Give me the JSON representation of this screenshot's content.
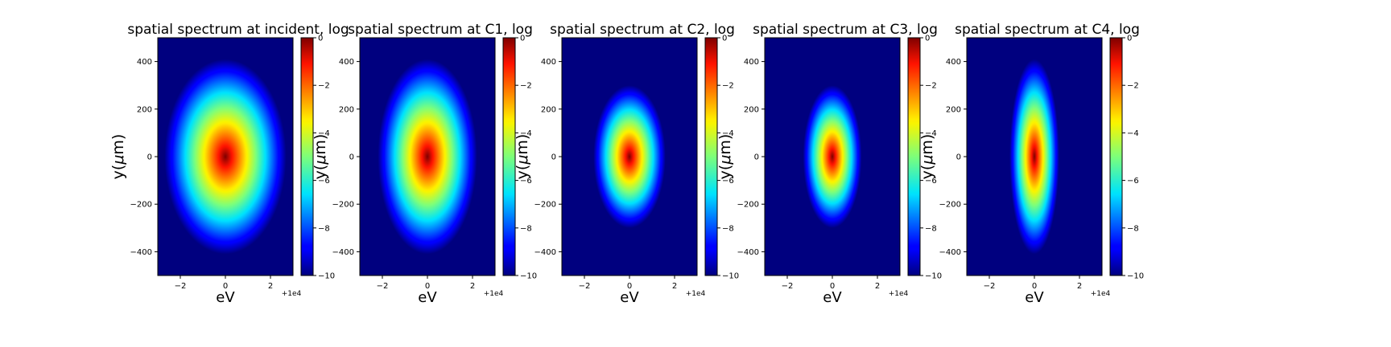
{
  "figure": {
    "panels": [
      {
        "title": "spatial spectrum at incident, log",
        "xlabel": "eV",
        "ylabel": "y($\\mu$m)",
        "x_offset": "+1e4"
      },
      {
        "title": "spatial spectrum at C1, log",
        "xlabel": "eV",
        "ylabel": "y($\\mu$m)",
        "x_offset": "+1e4"
      },
      {
        "title": "spatial spectrum at C2, log",
        "xlabel": "eV",
        "ylabel": "y($\\mu$m)",
        "x_offset": "+1e4"
      },
      {
        "title": "spatial spectrum at C3, log",
        "xlabel": "eV",
        "ylabel": "y($\\mu$m)",
        "x_offset": "+1e4"
      },
      {
        "title": "spatial spectrum at C4, log",
        "xlabel": "eV",
        "ylabel": "y($\\mu$m)",
        "x_offset": "+1e4"
      }
    ]
  },
  "chart_data": [
    {
      "type": "heatmap",
      "title": "spatial spectrum at incident, log",
      "xlabel": "eV",
      "ylabel": "y($\\mu$m)",
      "x_offset_label": "+1e4",
      "xlim": [
        -3,
        3
      ],
      "ylim": [
        -500,
        500
      ],
      "xticks": [
        -2,
        0,
        2
      ],
      "yticks": [
        -400,
        -200,
        0,
        200,
        400
      ],
      "colorbar": {
        "range": [
          -10,
          0
        ],
        "ticks": [
          0,
          -2,
          -4,
          -6,
          -8,
          -10
        ],
        "colormap": "jet"
      },
      "spot": {
        "center_x": 0,
        "center_y": 0,
        "half_width_x": 2.7,
        "half_height_y": 410
      },
      "grid": false
    },
    {
      "type": "heatmap",
      "title": "spatial spectrum at C1, log",
      "xlabel": "eV",
      "ylabel": "y($\\mu$m)",
      "x_offset_label": "+1e4",
      "xlim": [
        -3,
        3
      ],
      "ylim": [
        -500,
        500
      ],
      "xticks": [
        -2,
        0,
        2
      ],
      "yticks": [
        -400,
        -200,
        0,
        200,
        400
      ],
      "colorbar": {
        "range": [
          -10,
          0
        ],
        "ticks": [
          0,
          -2,
          -4,
          -6,
          -8,
          -10
        ],
        "colormap": "jet"
      },
      "spot": {
        "center_x": 0,
        "center_y": 0,
        "half_width_x": 2.2,
        "half_height_y": 410
      },
      "grid": false
    },
    {
      "type": "heatmap",
      "title": "spatial spectrum at C2, log",
      "xlabel": "eV",
      "ylabel": "y($\\mu$m)",
      "x_offset_label": "+1e4",
      "xlim": [
        -3,
        3
      ],
      "ylim": [
        -500,
        500
      ],
      "xticks": [
        -2,
        0,
        2
      ],
      "yticks": [
        -400,
        -200,
        0,
        200,
        400
      ],
      "colorbar": {
        "range": [
          -10,
          0
        ],
        "ticks": [
          0,
          -2,
          -4,
          -6,
          -8,
          -10
        ],
        "colormap": "jet"
      },
      "spot": {
        "center_x": 0,
        "center_y": 0,
        "half_width_x": 1.6,
        "half_height_y": 300
      },
      "grid": false
    },
    {
      "type": "heatmap",
      "title": "spatial spectrum at C3, log",
      "xlabel": "eV",
      "ylabel": "y($\\mu$m)",
      "x_offset_label": "+1e4",
      "xlim": [
        -3,
        3
      ],
      "ylim": [
        -500,
        500
      ],
      "xticks": [
        -2,
        0,
        2
      ],
      "yticks": [
        -400,
        -200,
        0,
        200,
        400
      ],
      "colorbar": {
        "range": [
          -10,
          0
        ],
        "ticks": [
          0,
          -2,
          -4,
          -6,
          -8,
          -10
        ],
        "colormap": "jet"
      },
      "spot": {
        "center_x": 0,
        "center_y": 0,
        "half_width_x": 1.3,
        "half_height_y": 300
      },
      "grid": false
    },
    {
      "type": "heatmap",
      "title": "spatial spectrum at C4, log",
      "xlabel": "eV",
      "ylabel": "y($\\mu$m)",
      "x_offset_label": "+1e4",
      "xlim": [
        -3,
        3
      ],
      "ylim": [
        -500,
        500
      ],
      "xticks": [
        -2,
        0,
        2
      ],
      "yticks": [
        -400,
        -200,
        0,
        200,
        400
      ],
      "colorbar": {
        "range": [
          -10,
          0
        ],
        "ticks": [
          0,
          -2,
          -4,
          -6,
          -8,
          -10
        ],
        "colormap": "jet"
      },
      "spot": {
        "center_x": 0,
        "center_y": 0,
        "half_width_x": 1.1,
        "half_height_y": 410
      },
      "grid": false
    }
  ]
}
